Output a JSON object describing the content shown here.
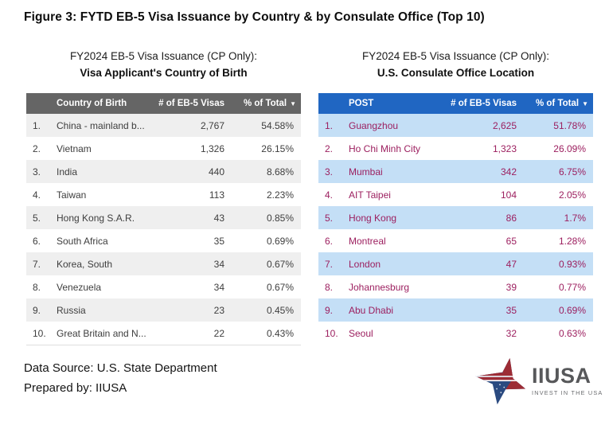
{
  "figure_title": "Figure 3: FYTD EB-5 Visa Issuance by Country & by Consulate Office (Top 10)",
  "chart_data": [
    {
      "type": "table",
      "title_line1": "FY2024 EB-5 Visa Issuance (CP Only):",
      "title_line2": "Visa Applicant's Country of Birth",
      "columns": [
        "Country of Birth",
        "# of EB-5 Visas",
        "% of Total"
      ],
      "sort_icon": "▼",
      "rows": [
        [
          "1.",
          "China - mainland b...",
          "2,767",
          "54.58%"
        ],
        [
          "2.",
          "Vietnam",
          "1,326",
          "26.15%"
        ],
        [
          "3.",
          "India",
          "440",
          "8.68%"
        ],
        [
          "4.",
          "Taiwan",
          "113",
          "2.23%"
        ],
        [
          "5.",
          "Hong Kong S.A.R.",
          "43",
          "0.85%"
        ],
        [
          "6.",
          "South Africa",
          "35",
          "0.69%"
        ],
        [
          "7.",
          "Korea, South",
          "34",
          "0.67%"
        ],
        [
          "8.",
          "Venezuela",
          "34",
          "0.67%"
        ],
        [
          "9.",
          "Russia",
          "23",
          "0.45%"
        ],
        [
          "10.",
          "Great Britain and N...",
          "22",
          "0.43%"
        ]
      ],
      "colors": {
        "header_bg": "#656565",
        "alt_bg": "#efefef",
        "text": "#3e3e3e"
      }
    },
    {
      "type": "table",
      "title_line1": "FY2024 EB-5 Visa Issuance (CP Only):",
      "title_line2": "U.S. Consulate Office Location",
      "columns": [
        "POST",
        "# of EB-5 Visas",
        "% of Total"
      ],
      "sort_icon": "▼",
      "rows": [
        [
          "1.",
          "Guangzhou",
          "2,625",
          "51.78%"
        ],
        [
          "2.",
          "Ho Chi Minh City",
          "1,323",
          "26.09%"
        ],
        [
          "3.",
          "Mumbai",
          "342",
          "6.75%"
        ],
        [
          "4.",
          "AIT Taipei",
          "104",
          "2.05%"
        ],
        [
          "5.",
          "Hong Kong",
          "86",
          "1.7%"
        ],
        [
          "6.",
          "Montreal",
          "65",
          "1.28%"
        ],
        [
          "7.",
          "London",
          "47",
          "0.93%"
        ],
        [
          "8.",
          "Johannesburg",
          "39",
          "0.77%"
        ],
        [
          "9.",
          "Abu Dhabi",
          "35",
          "0.69%"
        ],
        [
          "10.",
          "Seoul",
          "32",
          "0.63%"
        ]
      ],
      "colors": {
        "header_bg": "#2066c2",
        "alt_bg": "#c4dff6",
        "text": "#9c1f5f"
      }
    }
  ],
  "footer": {
    "source": "Data Source: U.S. State Department",
    "prepared": "Prepared by: IIUSA"
  },
  "logo": {
    "wordmark": "IIUSA",
    "tagline": "INVEST IN THE USA",
    "colors": {
      "blue": "#2a4a80",
      "red": "#9d2c35",
      "wordmark": "#57585a",
      "tagline": "#6a6b6e"
    }
  }
}
